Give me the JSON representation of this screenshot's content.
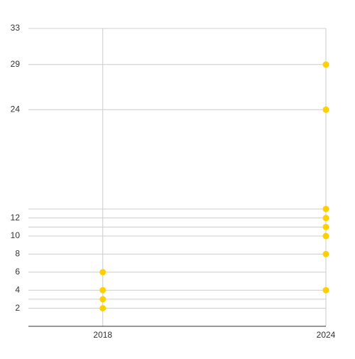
{
  "chart_data": {
    "type": "scatter",
    "x": [
      2018,
      2018,
      2018,
      2018,
      2024,
      2024,
      2024,
      2024,
      2024,
      2024,
      2024,
      2024
    ],
    "values": [
      6,
      4,
      3,
      2,
      29,
      24,
      13,
      12,
      11,
      10,
      8,
      4
    ],
    "color": "#ffd000",
    "xlim": [
      2016,
      2024
    ],
    "xticks": [
      2018,
      2024
    ],
    "ylim": [
      0,
      33
    ],
    "yticks": [
      {
        "value": 2,
        "label": "2"
      },
      {
        "value": 3,
        "label": null
      },
      {
        "value": 4,
        "label": "4"
      },
      {
        "value": 6,
        "label": "6"
      },
      {
        "value": 8,
        "label": "8"
      },
      {
        "value": 10,
        "label": "10"
      },
      {
        "value": 11,
        "label": null
      },
      {
        "value": 12,
        "label": "12"
      },
      {
        "value": 13,
        "label": null
      },
      {
        "value": 24,
        "label": "24"
      },
      {
        "value": 29,
        "label": "29"
      },
      {
        "value": 33,
        "label": "33"
      }
    ],
    "grid": true
  }
}
